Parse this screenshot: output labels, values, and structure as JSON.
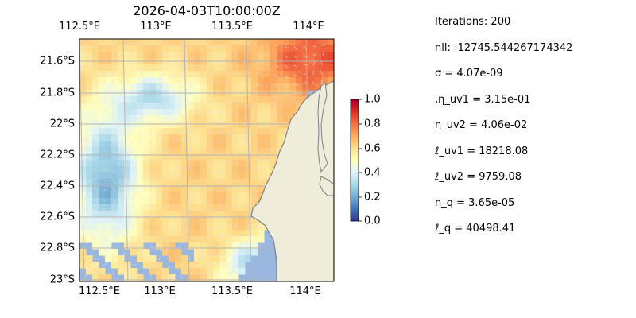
{
  "title": "2026-04-03T10:00:00Z",
  "top_ticks": [
    "112.5°E",
    "113°E",
    "113.5°E",
    "114°E"
  ],
  "bottom_ticks": [
    "112.5°E",
    "113°E",
    "113.5°E",
    "114°E"
  ],
  "left_ticks": [
    "21.6°S",
    "21.8°S",
    "22°S",
    "22.2°S",
    "22.4°S",
    "22.6°S",
    "22.8°S",
    "23°S"
  ],
  "colorbar": {
    "ticks": [
      "1.0",
      "0.8",
      "0.6",
      "0.4",
      "0.2",
      "0.0"
    ],
    "range": [
      0,
      1
    ],
    "colormap": [
      "#313695",
      "#4575b4",
      "#74add1",
      "#abd9e9",
      "#e0f3f8",
      "#ffffbf",
      "#fee090",
      "#fdae61",
      "#f46d43",
      "#d73027",
      "#a50026"
    ]
  },
  "map": {
    "extent_lon": [
      112.5,
      114.2
    ],
    "extent_lat": [
      -23.0,
      -21.5
    ],
    "ocean_color": "#9ab7e0",
    "land_color": "#efedd9",
    "coast_color": "#7a7f8a"
  },
  "stats": [
    "Iterations: 200",
    "nll: -12745.544267174342",
    "σ = 4.07e-09",
    ",η_uv1 = 3.15e-01",
    "η_uv2 = 4.06e-02",
    "ℓ_uv1 = 18218.08",
    "ℓ_uv2 = 9759.08",
    "η_q = 3.65e-05",
    "ℓ_q = 40498.41"
  ]
}
